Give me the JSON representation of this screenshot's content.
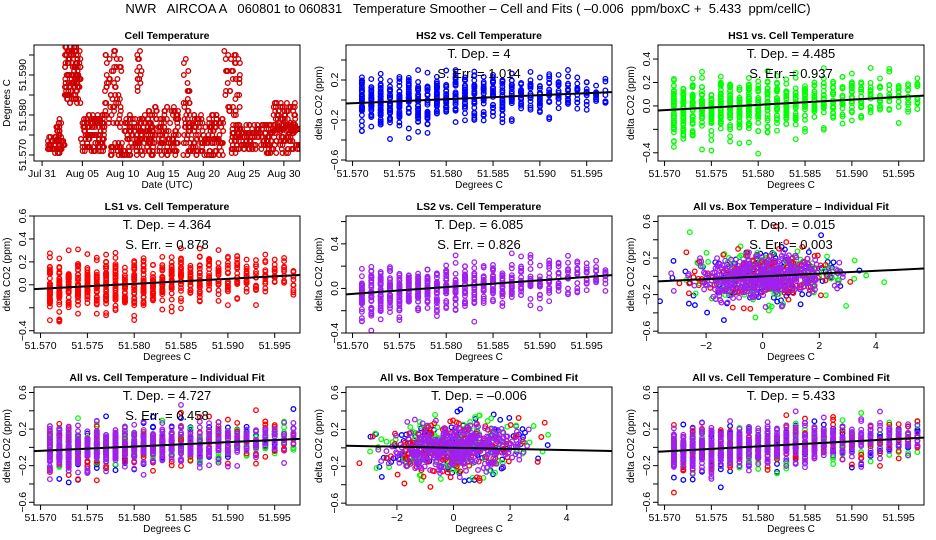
{
  "title": "NWR   AIRCOA A   060801 to 060831   Temperature Smoother – Cell and Fits ( –0.006  ppm/boxC +  5.433  ppm/cellC)",
  "colors": {
    "HS2": "#0000ff",
    "HS1": "#00ff00",
    "LS1": "#ff0000",
    "LS2": "#a020f0",
    "cell": "#cc0000",
    "fit_line": "#000000"
  },
  "chart_data": [
    {
      "id": "cell-temperature",
      "type": "scatter",
      "title": "Cell Temperature",
      "xlabel": "Date (UTC)",
      "ylabel": "Degrees C",
      "xlim": [
        -1,
        32
      ],
      "ylim": [
        51.5685,
        51.5975
      ],
      "xticks": [
        0,
        5,
        10,
        15,
        20,
        25,
        30
      ],
      "xtick_labels": [
        "Jul 31",
        "Aug 05",
        "Aug 10",
        "Aug 15",
        "Aug 20",
        "Aug 25",
        "Aug 30"
      ],
      "yticks": [
        51.57,
        51.575,
        51.58,
        51.585,
        51.59,
        51.595
      ],
      "ytick_labels": [
        "51.570",
        "",
        "51.580",
        "",
        "51.590",
        ""
      ],
      "series": [
        {
          "name": "Cell Temperature",
          "color_key": "cell",
          "clusters": [
            {
              "x": [
                0.7,
                2.8
              ],
              "y": [
                51.5705,
                51.5745
              ],
              "n": 60
            },
            {
              "x": [
                1.7,
                2.4
              ],
              "y": [
                51.574,
                51.579
              ],
              "n": 15
            },
            {
              "x": [
                2.8,
                4.8
              ],
              "y": [
                51.583,
                51.597
              ],
              "n": 120
            },
            {
              "x": [
                4.8,
                7.8
              ],
              "y": [
                51.571,
                51.58
              ],
              "n": 120
            },
            {
              "x": [
                7.8,
                9.9
              ],
              "y": [
                51.577,
                51.597
              ],
              "n": 60
            },
            {
              "x": [
                8.5,
                10.4
              ],
              "y": [
                51.57,
                51.573
              ],
              "n": 30
            },
            {
              "x": [
                10.2,
                13.5
              ],
              "y": [
                51.57,
                51.58
              ],
              "n": 110
            },
            {
              "x": [
                11.8,
                12.4
              ],
              "y": [
                51.585,
                51.596
              ],
              "n": 14
            },
            {
              "x": [
                13.0,
                17.0
              ],
              "y": [
                51.57,
                51.582
              ],
              "n": 140
            },
            {
              "x": [
                17.5,
                18.3
              ],
              "y": [
                51.58,
                51.596
              ],
              "n": 18
            },
            {
              "x": [
                17.5,
                22.5
              ],
              "y": [
                51.57,
                51.58
              ],
              "n": 150
            },
            {
              "x": [
                22.5,
                24.6
              ],
              "y": [
                51.58,
                51.596
              ],
              "n": 40
            },
            {
              "x": [
                23.5,
                32.0
              ],
              "y": [
                51.5705,
                51.578
              ],
              "n": 230
            },
            {
              "x": [
                28.5,
                31.5
              ],
              "y": [
                51.576,
                51.5835
              ],
              "n": 60
            }
          ]
        }
      ]
    },
    {
      "id": "hs2-vs-cell",
      "type": "scatter",
      "title": "HS2 vs. Cell Temperature",
      "xlabel": "Degrees C",
      "ylabel": "delta CO2 (ppm)",
      "xlim": [
        51.5693,
        51.5977
      ],
      "ylim": [
        -0.61,
        0.55
      ],
      "xticks": [
        51.57,
        51.575,
        51.58,
        51.585,
        51.59,
        51.595
      ],
      "xtick_labels": [
        "51.570",
        "51.575",
        "51.580",
        "51.585",
        "51.590",
        "51.595"
      ],
      "yticks": [
        -0.6,
        -0.4,
        -0.2,
        0.0,
        0.2,
        0.4
      ],
      "ytick_labels": [
        "−0.6",
        "",
        "−0.2",
        "",
        "0.2",
        ""
      ],
      "annotations": [
        "T. Dep. =  4",
        "S. Err. =  1.014"
      ],
      "fit": {
        "slope": 4.0,
        "x0": 51.578,
        "y0": 0.0
      },
      "series": [
        {
          "name": "HS2",
          "color_key": "HS2",
          "x_grid": [
            51.571,
            51.5975
          ],
          "spread": [
            0.3,
            0.22
          ],
          "n_per_col": [
            40,
            8
          ]
        }
      ]
    },
    {
      "id": "hs1-vs-cell",
      "type": "scatter",
      "title": "HS1 vs. Cell Temperature",
      "xlabel": "Degrees C",
      "ylabel": "delta CO2 (ppm)",
      "xlim": [
        51.5693,
        51.5977
      ],
      "ylim": [
        -0.47,
        0.52
      ],
      "xticks": [
        51.57,
        51.575,
        51.58,
        51.585,
        51.59,
        51.595
      ],
      "xtick_labels": [
        "51.570",
        "51.575",
        "51.580",
        "51.585",
        "51.590",
        "51.595"
      ],
      "yticks": [
        -0.4,
        -0.2,
        0.0,
        0.2,
        0.4
      ],
      "ytick_labels": [
        "−0.4",
        "",
        "0.0",
        "0.2",
        "0.4"
      ],
      "annotations": [
        "T. Dep. =  4.485",
        "S. Err. =  0.937"
      ],
      "fit": {
        "slope": 4.485,
        "x0": 51.578,
        "y0": 0.0
      },
      "series": [
        {
          "name": "HS1",
          "color_key": "HS1",
          "x_grid": [
            51.571,
            51.5975
          ],
          "spread": [
            0.27,
            0.2
          ],
          "n_per_col": [
            40,
            8
          ]
        }
      ]
    },
    {
      "id": "ls1-vs-cell",
      "type": "scatter",
      "title": "LS1 vs. Cell Temperature",
      "xlabel": "Degrees C",
      "ylabel": "delta CO2 (ppm)",
      "xlim": [
        51.5693,
        51.5977
      ],
      "ylim": [
        -0.42,
        0.6
      ],
      "xticks": [
        51.57,
        51.575,
        51.58,
        51.585,
        51.59,
        51.595
      ],
      "xtick_labels": [
        "51.570",
        "51.575",
        "51.580",
        "51.585",
        "51.590",
        "51.595"
      ],
      "yticks": [
        -0.4,
        -0.2,
        0.0,
        0.2,
        0.4,
        0.6
      ],
      "ytick_labels": [
        "−0.4",
        "",
        "0.0",
        "0.2",
        "0.4",
        "0.6"
      ],
      "annotations": [
        "T. Dep. =  4.364",
        "S. Err. =  0.878"
      ],
      "fit": {
        "slope": 4.364,
        "x0": 51.578,
        "y0": 0.0
      },
      "series": [
        {
          "name": "LS1",
          "color_key": "LS1",
          "x_grid": [
            51.571,
            51.5975
          ],
          "spread": [
            0.25,
            0.2
          ],
          "n_per_col": [
            45,
            8
          ]
        }
      ]
    },
    {
      "id": "ls2-vs-cell",
      "type": "scatter",
      "title": "LS2 vs. Cell Temperature",
      "xlabel": "Degrees C",
      "ylabel": "delta CO2 (ppm)",
      "xlim": [
        51.5693,
        51.5977
      ],
      "ylim": [
        -0.4,
        0.65
      ],
      "xticks": [
        51.57,
        51.575,
        51.58,
        51.585,
        51.59,
        51.595
      ],
      "xtick_labels": [
        "51.570",
        "51.575",
        "51.580",
        "51.585",
        "51.590",
        "51.595"
      ],
      "yticks": [
        -0.4,
        -0.2,
        0.0,
        0.2,
        0.4,
        0.6
      ],
      "ytick_labels": [
        "−0.4",
        "",
        "0.0",
        "",
        "0.4",
        ""
      ],
      "annotations": [
        "T. Dep. =  6.085",
        "S. Err. =  0.826"
      ],
      "fit": {
        "slope": 6.085,
        "x0": 51.578,
        "y0": 0.0
      },
      "series": [
        {
          "name": "LS2",
          "color_key": "LS2",
          "x_grid": [
            51.571,
            51.5975
          ],
          "spread": [
            0.23,
            0.2
          ],
          "n_per_col": [
            40,
            8
          ]
        }
      ]
    },
    {
      "id": "all-vs-box-individual",
      "type": "scatter",
      "title": "All vs. Box Temperature – Individual Fit",
      "xlabel": "Degrees C",
      "ylabel": "delta CO2 (ppm)",
      "xlim": [
        -3.7,
        5.7
      ],
      "ylim": [
        -0.62,
        0.66
      ],
      "xticks": [
        -2,
        0,
        2,
        4
      ],
      "xtick_labels": [
        "−2",
        "0",
        "2",
        "4"
      ],
      "yticks": [
        -0.6,
        -0.4,
        -0.2,
        0.0,
        0.2,
        0.4,
        0.6
      ],
      "ytick_labels": [
        "−0.6",
        "",
        "−0.2",
        "",
        "0.2",
        "",
        "0.6"
      ],
      "annotations": [
        "T. Dep. =  0.015",
        "S. Err. =  0.003"
      ],
      "fit": {
        "slope": 0.015,
        "x0": 0,
        "y0": 0.0
      },
      "series": [
        {
          "name": "HS2",
          "color_key": "HS2",
          "center": [
            0,
            0
          ],
          "sd": [
            1.3,
            0.15
          ],
          "n": 140
        },
        {
          "name": "HS1",
          "color_key": "HS1",
          "center": [
            0,
            0
          ],
          "sd": [
            1.3,
            0.15
          ],
          "n": 140
        },
        {
          "name": "LS1",
          "color_key": "LS1",
          "center": [
            0,
            0
          ],
          "sd": [
            1.3,
            0.15
          ],
          "n": 140
        },
        {
          "name": "LS2",
          "color_key": "LS2",
          "center": [
            0,
            0
          ],
          "sd": [
            1.1,
            0.11
          ],
          "n": 420
        }
      ]
    },
    {
      "id": "all-vs-cell-individual",
      "type": "scatter",
      "title": "All vs. Cell Temperature – Individual Fit",
      "xlabel": "Degrees C",
      "ylabel": "delta CO2 (ppm)",
      "xlim": [
        51.5693,
        51.5977
      ],
      "ylim": [
        -0.63,
        0.66
      ],
      "xticks": [
        51.57,
        51.575,
        51.58,
        51.585,
        51.59,
        51.595
      ],
      "xtick_labels": [
        "51.570",
        "51.575",
        "51.580",
        "51.585",
        "51.590",
        "51.595"
      ],
      "yticks": [
        -0.6,
        -0.4,
        -0.2,
        0.0,
        0.2,
        0.4,
        0.6
      ],
      "ytick_labels": [
        "−0.6",
        "",
        "−0.2",
        "",
        "0.2",
        "",
        "0.6"
      ],
      "annotations": [
        "T. Dep. =  4.727",
        "S. Err. =  0.458"
      ],
      "fit": {
        "slope": 4.727,
        "x0": 51.578,
        "y0": 0.0
      },
      "series": [
        {
          "name": "HS2",
          "color_key": "HS2",
          "x_grid": [
            51.571,
            51.5975
          ],
          "spread": [
            0.3,
            0.22
          ],
          "n_per_col": [
            10,
            4
          ]
        },
        {
          "name": "HS1",
          "color_key": "HS1",
          "x_grid": [
            51.571,
            51.5975
          ],
          "spread": [
            0.3,
            0.22
          ],
          "n_per_col": [
            10,
            4
          ]
        },
        {
          "name": "LS1",
          "color_key": "LS1",
          "x_grid": [
            51.571,
            51.5975
          ],
          "spread": [
            0.3,
            0.22
          ],
          "n_per_col": [
            10,
            4
          ]
        },
        {
          "name": "LS2",
          "color_key": "LS2",
          "x_grid": [
            51.571,
            51.5975
          ],
          "spread": [
            0.25,
            0.2
          ],
          "n_per_col": [
            40,
            8
          ]
        }
      ]
    },
    {
      "id": "all-vs-box-combined",
      "type": "scatter",
      "title": "All vs. Box Temperature – Combined Fit",
      "xlabel": "Degrees C",
      "ylabel": "delta CO2 (ppm)",
      "xlim": [
        -3.8,
        5.6
      ],
      "ylim": [
        -0.62,
        0.66
      ],
      "xticks": [
        -2,
        0,
        2,
        4
      ],
      "xtick_labels": [
        "−2",
        "0",
        "2",
        "4"
      ],
      "yticks": [
        -0.6,
        -0.4,
        -0.2,
        0.0,
        0.2,
        0.4,
        0.6
      ],
      "ytick_labels": [
        "−0.6",
        "",
        "−0.2",
        "",
        "0.2",
        "",
        "0.6"
      ],
      "annotations": [
        "T. Dep. =  –0.006"
      ],
      "fit": {
        "slope": -0.006,
        "x0": 0,
        "y0": 0.0
      },
      "series": [
        {
          "name": "HS2",
          "color_key": "HS2",
          "center": [
            0,
            0
          ],
          "sd": [
            1.3,
            0.15
          ],
          "n": 140
        },
        {
          "name": "HS1",
          "color_key": "HS1",
          "center": [
            0,
            0
          ],
          "sd": [
            1.3,
            0.15
          ],
          "n": 140
        },
        {
          "name": "LS1",
          "color_key": "LS1",
          "center": [
            0,
            0
          ],
          "sd": [
            1.3,
            0.15
          ],
          "n": 140
        },
        {
          "name": "LS2",
          "color_key": "LS2",
          "center": [
            0,
            0
          ],
          "sd": [
            1.1,
            0.11
          ],
          "n": 420
        }
      ]
    },
    {
      "id": "all-vs-cell-combined",
      "type": "scatter",
      "title": "All vs. Cell Temperature – Combined Fit",
      "xlabel": "Degrees C",
      "ylabel": "delta CO2 (ppm)",
      "xlim": [
        51.5693,
        51.5977
      ],
      "ylim": [
        -0.63,
        0.66
      ],
      "xticks": [
        51.57,
        51.575,
        51.58,
        51.585,
        51.59,
        51.595
      ],
      "xtick_labels": [
        "51.570",
        "51.575",
        "51.580",
        "51.585",
        "51.590",
        "51.595"
      ],
      "yticks": [
        -0.6,
        -0.4,
        -0.2,
        0.0,
        0.2,
        0.4,
        0.6
      ],
      "ytick_labels": [
        "−0.6",
        "",
        "−0.2",
        "",
        "0.2",
        "",
        "0.6"
      ],
      "annotations": [
        "T. Dep. =  5.433"
      ],
      "fit": {
        "slope": 5.433,
        "x0": 51.578,
        "y0": 0.0
      },
      "series": [
        {
          "name": "HS2",
          "color_key": "HS2",
          "x_grid": [
            51.571,
            51.5975
          ],
          "spread": [
            0.3,
            0.22
          ],
          "n_per_col": [
            10,
            4
          ]
        },
        {
          "name": "HS1",
          "color_key": "HS1",
          "x_grid": [
            51.571,
            51.5975
          ],
          "spread": [
            0.3,
            0.22
          ],
          "n_per_col": [
            10,
            4
          ]
        },
        {
          "name": "LS1",
          "color_key": "LS1",
          "x_grid": [
            51.571,
            51.5975
          ],
          "spread": [
            0.3,
            0.22
          ],
          "n_per_col": [
            10,
            4
          ]
        },
        {
          "name": "LS2",
          "color_key": "LS2",
          "x_grid": [
            51.571,
            51.5975
          ],
          "spread": [
            0.25,
            0.2
          ],
          "n_per_col": [
            40,
            8
          ]
        }
      ]
    }
  ]
}
